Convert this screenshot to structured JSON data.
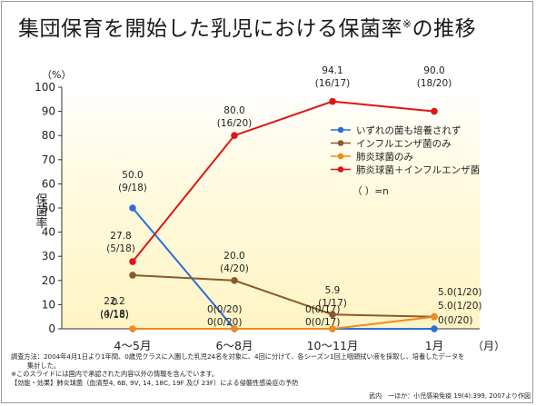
{
  "title_main": "集団保育を開始した乳児における保菌率",
  "title_mark": "※",
  "title_suffix": "の推移",
  "chart_data": {
    "type": "line",
    "categories": [
      "4～5月",
      "6～8月",
      "10～11月",
      "1月"
    ],
    "x_unit": "（月）",
    "y_unit": "（%）",
    "ylabel": "保菌率",
    "ylim": [
      0,
      100
    ],
    "y_ticks": [
      0,
      10,
      20,
      30,
      40,
      50,
      60,
      70,
      80,
      90,
      100
    ],
    "grid": false,
    "legend_position": "right",
    "series": [
      {
        "name": "いずれの菌も培養されず",
        "color": "#2a6edc",
        "values": [
          50.0,
          0,
          0,
          0
        ],
        "labels": [
          [
            "50.0",
            "(9/18)"
          ],
          [
            "0(0/20)"
          ],
          [
            "0(0/17)"
          ],
          [
            "0(0/20)"
          ]
        ]
      },
      {
        "name": "インフルエンザ菌のみ",
        "color": "#8b5a2b",
        "values": [
          22.2,
          20.0,
          5.9,
          5.0
        ],
        "labels": [
          [
            "22.2",
            "(4/18)"
          ],
          [
            "20.0",
            "(4/20)"
          ],
          [
            "5.9",
            "(1/17)"
          ],
          [
            "5.0(1/20)"
          ]
        ]
      },
      {
        "name": "肺炎球菌のみ",
        "color": "#f08a1c",
        "values": [
          0,
          0,
          0,
          5.0
        ],
        "labels": [
          [
            "0",
            "(0/18)"
          ],
          [
            "0(0/20)"
          ],
          [
            "0(0/17)"
          ],
          [
            "5.0(1/20)"
          ]
        ]
      },
      {
        "name": "肺炎球菌＋インフルエンザ菌",
        "color": "#e01414",
        "values": [
          27.8,
          80.0,
          94.1,
          90.0
        ],
        "labels": [
          [
            "27.8",
            "(5/18)"
          ],
          [
            "80.0",
            "(16/20)"
          ],
          [
            "94.1",
            "(16/17)"
          ],
          [
            "90.0",
            "(18/20)"
          ]
        ]
      }
    ],
    "legend_note": "（ ）=n"
  },
  "footer": {
    "line1": "調査方法：2004年4月1日より1年間、0歳児クラスに入園した乳児24名を対象に、4回に分けて、各シーズン1回上咽頭拭い液を採取し、培養したデータを",
    "line2": "集計した。",
    "line3": "※このスライドには国内で承認された内容以外の情報を含んでいます。",
    "line4": "【効能・効果】肺炎球菌（血清型4, 6B, 9V, 14, 18C, 19F 及び 23F）による侵襲性感染症の予防"
  },
  "citation": "武内　一ほか：小児感染免疫 19(4):399, 2007より作図"
}
